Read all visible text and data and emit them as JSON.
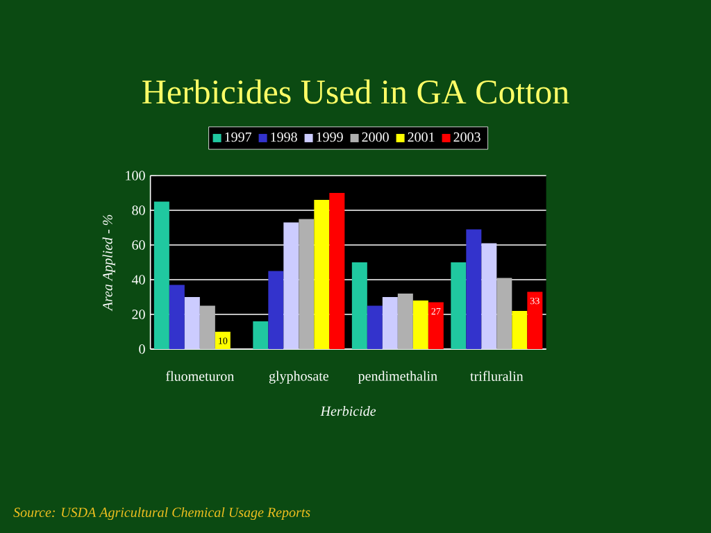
{
  "chart_data": {
    "type": "bar",
    "title": "Herbicides Used in GA Cotton",
    "xlabel": "Herbicide",
    "ylabel": "Area Applied - %",
    "categories": [
      "fluometuron",
      "glyphosate",
      "pendimethalin",
      "trifluralin"
    ],
    "series": [
      {
        "name": "1997",
        "color": "#20c8a0",
        "values": [
          85,
          16,
          50,
          50
        ]
      },
      {
        "name": "1998",
        "color": "#3333cc",
        "values": [
          37,
          45,
          25,
          69
        ]
      },
      {
        "name": "1999",
        "color": "#ccccff",
        "values": [
          30,
          73,
          30,
          61
        ]
      },
      {
        "name": "2000",
        "color": "#b0b0b0",
        "values": [
          25,
          75,
          32,
          41
        ]
      },
      {
        "name": "2001",
        "color": "#ffff00",
        "values": [
          10,
          86,
          28,
          22
        ],
        "value_labels": [
          "10",
          null,
          null,
          null
        ]
      },
      {
        "name": "2003",
        "color": "#ff0000",
        "values": [
          null,
          90,
          27,
          33
        ],
        "value_labels": [
          null,
          null,
          "27",
          "33"
        ]
      }
    ],
    "ylim": [
      0,
      100
    ],
    "yticks": [
      0,
      20,
      40,
      60,
      80,
      100
    ],
    "grid": "y",
    "legend": "top",
    "annotations": [
      "Source: USDA Agricultural Chemical Usage Reports"
    ]
  }
}
